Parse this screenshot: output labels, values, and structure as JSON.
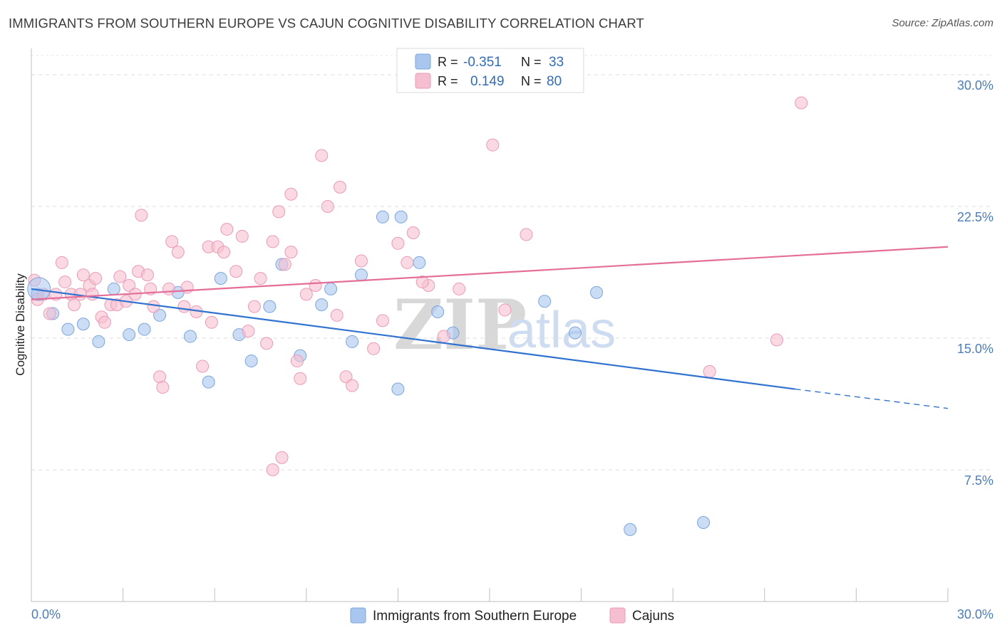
{
  "header": {
    "title": "IMMIGRANTS FROM SOUTHERN EUROPE VS CAJUN COGNITIVE DISABILITY CORRELATION CHART",
    "source": "Source: ZipAtlas.com"
  },
  "watermark": {
    "zip": "ZIP",
    "atlas": "atlas"
  },
  "chart_data": {
    "type": "scatter",
    "title": "IMMIGRANTS FROM SOUTHERN EUROPE VS CAJUN COGNITIVE DISABILITY CORRELATION CHART",
    "xlabel": "",
    "ylabel": "Cognitive Disability",
    "xlim": [
      0,
      30
    ],
    "ylim": [
      0,
      31.5
    ],
    "x_tick_labels": [
      "0.0%",
      "30.0%"
    ],
    "y_ticks": [
      7.5,
      15.0,
      22.5,
      30.0
    ],
    "y_tick_labels": [
      "7.5%",
      "15.0%",
      "22.5%",
      "30.0%"
    ],
    "grid": "horizontal dashed",
    "legend_position": "top-center",
    "series": [
      {
        "name": "Immigrants from Southern Europe",
        "color": "#a9c6ee",
        "stroke": "#7aa5de",
        "line_color": "#2f72d0",
        "R": "-0.351",
        "N": "33",
        "trend": {
          "x0": 0,
          "y0": 17.8,
          "x_solid_end": 25,
          "y_solid_end": 12.1,
          "x1": 30,
          "y1": 11.0
        },
        "points": [
          [
            0.2,
            17.5
          ],
          [
            0.7,
            16.4
          ],
          [
            1.2,
            15.5
          ],
          [
            1.7,
            15.8
          ],
          [
            2.2,
            14.8
          ],
          [
            2.7,
            17.8
          ],
          [
            3.2,
            15.2
          ],
          [
            3.7,
            15.5
          ],
          [
            4.2,
            16.3
          ],
          [
            4.8,
            17.6
          ],
          [
            5.2,
            15.1
          ],
          [
            5.8,
            12.5
          ],
          [
            6.2,
            18.4
          ],
          [
            6.8,
            15.2
          ],
          [
            7.2,
            13.7
          ],
          [
            7.8,
            16.8
          ],
          [
            8.2,
            19.2
          ],
          [
            8.8,
            14.0
          ],
          [
            9.5,
            16.9
          ],
          [
            9.8,
            17.8
          ],
          [
            10.5,
            14.8
          ],
          [
            10.8,
            18.6
          ],
          [
            11.5,
            21.9
          ],
          [
            12.0,
            12.1
          ],
          [
            12.1,
            21.9
          ],
          [
            12.7,
            19.3
          ],
          [
            13.3,
            16.5
          ],
          [
            13.8,
            15.3
          ],
          [
            16.8,
            17.1
          ],
          [
            17.8,
            15.3
          ],
          [
            18.5,
            17.6
          ],
          [
            19.6,
            4.1
          ],
          [
            22.0,
            4.5
          ]
        ]
      },
      {
        "name": "Cajuns",
        "color": "#f6bfd1",
        "stroke": "#ec9ab7",
        "line_color": "#e46e97",
        "R": "0.149",
        "N": "80",
        "trend": {
          "x0": 0,
          "y0": 17.2,
          "x1": 30,
          "y1": 20.2
        },
        "points": [
          [
            0.1,
            18.3
          ],
          [
            0.2,
            17.2
          ],
          [
            0.4,
            17.5
          ],
          [
            0.6,
            16.4
          ],
          [
            0.8,
            17.5
          ],
          [
            1.0,
            19.3
          ],
          [
            1.1,
            18.2
          ],
          [
            1.3,
            17.5
          ],
          [
            1.4,
            16.9
          ],
          [
            1.6,
            17.5
          ],
          [
            1.7,
            18.6
          ],
          [
            1.9,
            18.0
          ],
          [
            2.0,
            17.5
          ],
          [
            2.1,
            18.4
          ],
          [
            2.3,
            16.2
          ],
          [
            2.4,
            15.9
          ],
          [
            2.6,
            16.9
          ],
          [
            2.8,
            16.9
          ],
          [
            2.9,
            18.5
          ],
          [
            3.1,
            17.1
          ],
          [
            3.2,
            18.0
          ],
          [
            3.4,
            17.5
          ],
          [
            3.5,
            18.8
          ],
          [
            3.6,
            22.0
          ],
          [
            3.8,
            18.6
          ],
          [
            3.9,
            17.8
          ],
          [
            4.0,
            16.8
          ],
          [
            4.2,
            12.8
          ],
          [
            4.3,
            12.2
          ],
          [
            4.5,
            17.8
          ],
          [
            4.6,
            20.5
          ],
          [
            4.8,
            19.9
          ],
          [
            5.0,
            16.8
          ],
          [
            5.1,
            17.9
          ],
          [
            5.4,
            16.5
          ],
          [
            5.6,
            13.4
          ],
          [
            5.8,
            20.2
          ],
          [
            5.9,
            15.9
          ],
          [
            6.1,
            20.2
          ],
          [
            6.3,
            19.9
          ],
          [
            6.4,
            21.2
          ],
          [
            6.7,
            18.8
          ],
          [
            6.9,
            20.8
          ],
          [
            7.1,
            15.4
          ],
          [
            7.3,
            16.8
          ],
          [
            7.5,
            18.4
          ],
          [
            7.7,
            14.7
          ],
          [
            7.9,
            20.5
          ],
          [
            8.1,
            22.2
          ],
          [
            8.3,
            19.2
          ],
          [
            8.5,
            19.9
          ],
          [
            8.7,
            13.7
          ],
          [
            8.8,
            12.7
          ],
          [
            9.0,
            17.5
          ],
          [
            9.3,
            18.0
          ],
          [
            9.5,
            25.4
          ],
          [
            9.7,
            22.5
          ],
          [
            10.1,
            23.6
          ],
          [
            10.3,
            12.8
          ],
          [
            10.5,
            12.3
          ],
          [
            10.8,
            19.4
          ],
          [
            11.2,
            14.4
          ],
          [
            11.5,
            16.0
          ],
          [
            12.0,
            20.4
          ],
          [
            12.3,
            19.3
          ],
          [
            12.5,
            21.0
          ],
          [
            13.0,
            18.0
          ],
          [
            13.5,
            15.1
          ],
          [
            14.0,
            17.8
          ],
          [
            15.1,
            26.0
          ],
          [
            15.5,
            16.6
          ],
          [
            16.2,
            20.9
          ],
          [
            7.9,
            7.5
          ],
          [
            8.2,
            8.2
          ],
          [
            8.5,
            23.2
          ],
          [
            10.0,
            16.3
          ],
          [
            22.2,
            13.1
          ],
          [
            24.4,
            14.9
          ],
          [
            25.2,
            28.4
          ],
          [
            12.8,
            18.2
          ]
        ]
      }
    ]
  },
  "legend": {
    "r_label": "R =",
    "n_label": "N =",
    "series": [
      {
        "r_value": "-0.351",
        "n_value": "33"
      },
      {
        "r_value": "0.149",
        "n_value": "80"
      }
    ]
  },
  "bottom_legend": {
    "items": [
      "Immigrants from Southern Europe",
      "Cajuns"
    ]
  }
}
